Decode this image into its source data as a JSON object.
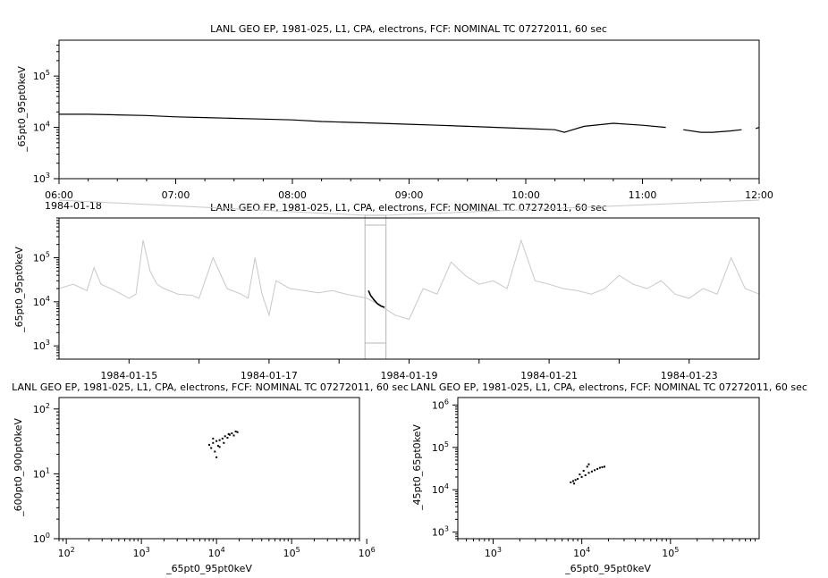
{
  "chart_data": [
    {
      "type": "line",
      "title": "LANL GEO EP, 1981-025, L1, CPA, electrons, FCF: NOMINAL TC 07272011, 60 sec",
      "ylabel": "_65pt0_95pt0keV",
      "xlabel": "",
      "x_tick_labels": [
        "06:00",
        "07:00",
        "08:00",
        "09:00",
        "10:00",
        "11:00",
        "12:00"
      ],
      "date_label": "1984-01-18",
      "ylim": [
        1000,
        500000
      ],
      "y_scale": "log",
      "y_ticks": [
        "10^3",
        "10^4",
        "10^5"
      ],
      "series": [
        {
          "color": "#000000",
          "x_hours": [
            6.0,
            6.25,
            6.5,
            6.75,
            7.0,
            7.25,
            7.5,
            7.75,
            8.0,
            8.25,
            8.5,
            8.75,
            9.0,
            9.25,
            9.5,
            9.75,
            10.0,
            10.25,
            10.33,
            10.5,
            10.75,
            11.0,
            11.2,
            null,
            11.35,
            11.5,
            11.6,
            11.75,
            11.85,
            null,
            11.97,
            12.0
          ],
          "values": [
            18000,
            18000,
            17500,
            17000,
            16000,
            15500,
            15000,
            14500,
            14000,
            13000,
            12500,
            12000,
            11500,
            11000,
            10500,
            10000,
            9500,
            9000,
            8000,
            10500,
            12000,
            11000,
            10000,
            null,
            9000,
            8000,
            8000,
            8500,
            9000,
            null,
            9500,
            10000
          ]
        }
      ]
    },
    {
      "type": "line",
      "title": "LANL GEO EP, 1981-025, L1, CPA, electrons, FCF: NOMINAL TC 07272011, 60 sec",
      "ylabel": "_65pt0_95pt0keV",
      "xlabel": "",
      "x_tick_labels": [
        "1984-01-15",
        "1984-01-17",
        "1984-01-19",
        "1984-01-21",
        "1984-01-23"
      ],
      "ylim": [
        500,
        800000
      ],
      "y_scale": "log",
      "y_ticks": [
        "10^3",
        "10^4",
        "10^5"
      ],
      "series": [
        {
          "name": "context",
          "color": "#c8c8c8",
          "x_days": [
            14.0,
            14.2,
            14.4,
            14.5,
            14.6,
            14.8,
            15.0,
            15.1,
            15.2,
            15.3,
            15.4,
            15.5,
            15.7,
            15.9,
            16.0,
            16.2,
            16.4,
            16.6,
            16.7,
            16.8,
            16.9,
            17.0,
            17.1,
            17.3,
            17.5,
            17.7,
            17.9,
            18.1,
            18.4,
            18.6,
            18.8,
            19.0,
            19.2,
            19.4,
            19.6,
            19.8,
            20.0,
            20.2,
            20.4,
            20.6,
            20.8,
            21.0,
            21.2,
            21.4,
            21.6,
            21.8,
            22.0,
            22.2,
            22.4,
            22.6,
            22.8,
            23.0,
            23.2,
            23.4,
            23.6,
            23.8,
            24.0
          ],
          "values": [
            20000,
            25000,
            18000,
            60000,
            25000,
            18000,
            12000,
            15000,
            250000,
            50000,
            25000,
            20000,
            15000,
            14000,
            12000,
            100000,
            20000,
            15000,
            12000,
            100000,
            15000,
            5000,
            30000,
            20000,
            18000,
            16000,
            18000,
            15000,
            12000,
            8000,
            5000,
            4000,
            20000,
            15000,
            80000,
            40000,
            25000,
            30000,
            20000,
            250000,
            30000,
            25000,
            20000,
            18000,
            15000,
            20000,
            40000,
            25000,
            20000,
            30000,
            15000,
            12000,
            20000,
            15000,
            100000,
            20000,
            15000
          ]
        },
        {
          "name": "selection",
          "color": "#000000",
          "x_days": [
            18.42,
            18.45,
            18.5,
            18.55,
            18.6,
            18.65
          ],
          "values": [
            18000,
            14000,
            11000,
            9000,
            8000,
            7500
          ]
        }
      ],
      "highlight_range_days": [
        18.37,
        18.67
      ]
    },
    {
      "type": "scatter",
      "title": "LANL GEO EP, 1981-025, L1, CPA, electrons, FCF: NOMINAL TC 07272011, 60 sec",
      "xlabel": "_65pt0_95pt0keV",
      "ylabel": "_600pt0_900pt0keV",
      "x_scale": "log",
      "y_scale": "log",
      "xlim": [
        80,
        800000
      ],
      "ylim": [
        1,
        150
      ],
      "x_ticks": [
        "10^2",
        "10^3",
        "10^4",
        "10^5",
        "10^6"
      ],
      "y_ticks": [
        "10^0",
        "10^1",
        "10^2"
      ],
      "points": [
        [
          8000,
          28
        ],
        [
          9000,
          30
        ],
        [
          10000,
          32
        ],
        [
          11000,
          33
        ],
        [
          12000,
          35
        ],
        [
          13000,
          38
        ],
        [
          14000,
          36
        ],
        [
          15000,
          40
        ],
        [
          16000,
          42
        ],
        [
          18000,
          45
        ],
        [
          19000,
          44
        ],
        [
          8500,
          25
        ],
        [
          9500,
          22
        ],
        [
          10000,
          18
        ],
        [
          11000,
          26
        ],
        [
          12500,
          30
        ],
        [
          9000,
          35
        ],
        [
          14500,
          41
        ],
        [
          17000,
          39
        ],
        [
          10500,
          27
        ]
      ]
    },
    {
      "type": "scatter",
      "title": "LANL GEO EP, 1981-025, L1, CPA, electrons, FCF: NOMINAL TC 07272011, 60 sec",
      "xlabel": "_65pt0_95pt0keV",
      "ylabel": "_45pt0_65pt0keV",
      "x_scale": "log",
      "y_scale": "log",
      "xlim": [
        400,
        1000000
      ],
      "ylim": [
        700,
        1500000
      ],
      "x_ticks": [
        "10^3",
        "10^4",
        "10^5"
      ],
      "y_ticks": [
        "10^3",
        "10^4",
        "10^5",
        "10^6"
      ],
      "points": [
        [
          7500,
          15000
        ],
        [
          8000,
          16000
        ],
        [
          8500,
          17000
        ],
        [
          9000,
          18000
        ],
        [
          10000,
          20000
        ],
        [
          11000,
          22000
        ],
        [
          12000,
          25000
        ],
        [
          13000,
          27000
        ],
        [
          14000,
          29000
        ],
        [
          15000,
          31000
        ],
        [
          16000,
          33000
        ],
        [
          17000,
          34000
        ],
        [
          18000,
          35000
        ],
        [
          10500,
          28000
        ],
        [
          11500,
          35000
        ],
        [
          9500,
          23000
        ],
        [
          12000,
          40000
        ],
        [
          8200,
          14000
        ]
      ]
    }
  ]
}
